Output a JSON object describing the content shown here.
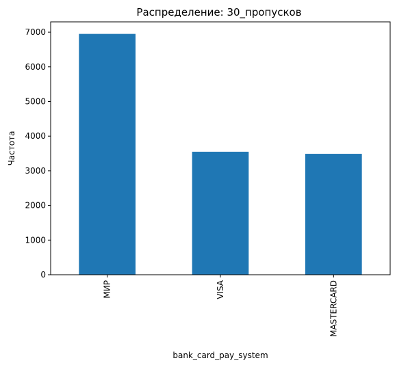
{
  "chart_data": {
    "type": "bar",
    "title": "Распределение: 30_пропусков",
    "xlabel": "bank_card_pay_system",
    "ylabel": "Частота",
    "categories": [
      "МИР",
      "VISA",
      "MASTERCARD"
    ],
    "values": [
      6950,
      3550,
      3490
    ],
    "ylim": [
      0,
      7000
    ],
    "yticks": [
      0,
      1000,
      2000,
      3000,
      4000,
      5000,
      6000,
      7000
    ],
    "bar_color": "#1f77b4",
    "grid": false,
    "legend": "none",
    "x_tick_rotation": "vertical"
  }
}
